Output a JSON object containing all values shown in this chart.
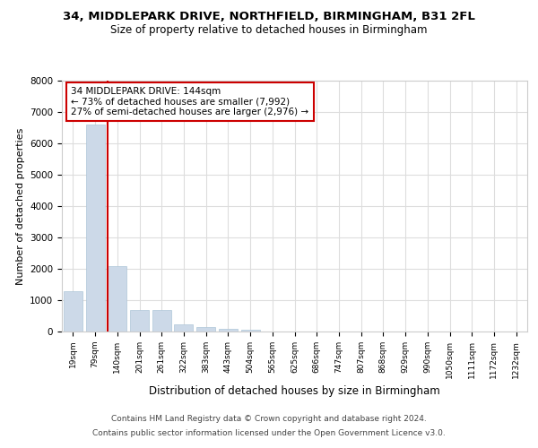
{
  "title1": "34, MIDDLEPARK DRIVE, NORTHFIELD, BIRMINGHAM, B31 2FL",
  "title2": "Size of property relative to detached houses in Birmingham",
  "xlabel": "Distribution of detached houses by size in Birmingham",
  "ylabel": "Number of detached properties",
  "bins": [
    "19sqm",
    "79sqm",
    "140sqm",
    "201sqm",
    "261sqm",
    "322sqm",
    "383sqm",
    "443sqm",
    "504sqm",
    "565sqm",
    "625sqm",
    "686sqm",
    "747sqm",
    "807sqm",
    "868sqm",
    "929sqm",
    "990sqm",
    "1050sqm",
    "1111sqm",
    "1172sqm",
    "1232sqm"
  ],
  "values": [
    1300,
    6600,
    2080,
    680,
    680,
    230,
    150,
    90,
    50,
    10,
    10,
    0,
    0,
    0,
    0,
    0,
    0,
    0,
    0,
    0,
    0
  ],
  "bar_color": "#ccd9e8",
  "bar_edge_color": "#aec6d8",
  "annotation_text": "34 MIDDLEPARK DRIVE: 144sqm\n← 73% of detached houses are smaller (7,992)\n27% of semi-detached houses are larger (2,976) →",
  "annotation_box_color": "#ffffff",
  "annotation_box_edge": "#cc0000",
  "vline_color": "#cc0000",
  "ylim": [
    0,
    8000
  ],
  "yticks": [
    0,
    1000,
    2000,
    3000,
    4000,
    5000,
    6000,
    7000,
    8000
  ],
  "footer1": "Contains HM Land Registry data © Crown copyright and database right 2024.",
  "footer2": "Contains public sector information licensed under the Open Government Licence v3.0.",
  "bg_color": "#ffffff",
  "plot_bg_color": "#ffffff"
}
